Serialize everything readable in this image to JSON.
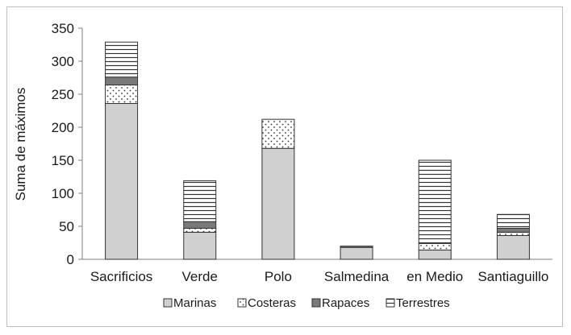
{
  "chart_data": {
    "type": "bar",
    "stacked": true,
    "title": "",
    "xlabel": "",
    "ylabel": "Suma de máximos",
    "ylim": [
      0,
      350
    ],
    "yticks": [
      0,
      50,
      100,
      150,
      200,
      250,
      300,
      350
    ],
    "grid": false,
    "legend_position": "bottom",
    "categories": [
      "Sacrificios",
      "Verde",
      "Polo",
      "Salmedina",
      "en Medio",
      "Santiaguillo"
    ],
    "series": [
      {
        "name": "Marinas",
        "values": [
          236,
          41,
          168,
          18,
          14,
          36
        ]
      },
      {
        "name": "Costeras",
        "values": [
          28,
          6,
          44,
          0,
          10,
          5
        ]
      },
      {
        "name": "Rapaces",
        "values": [
          12,
          10,
          0,
          2,
          0,
          6
        ]
      },
      {
        "name": "Terrestres",
        "values": [
          53,
          62,
          0,
          0,
          126,
          21
        ]
      }
    ],
    "colors": {
      "marinas": "#d0d0d0",
      "costeras": "#ffffff",
      "rapaces": "#7a7a7a",
      "terrestres": "#ffffff",
      "outline": "#333333",
      "axis": "#7f7f7f"
    }
  }
}
